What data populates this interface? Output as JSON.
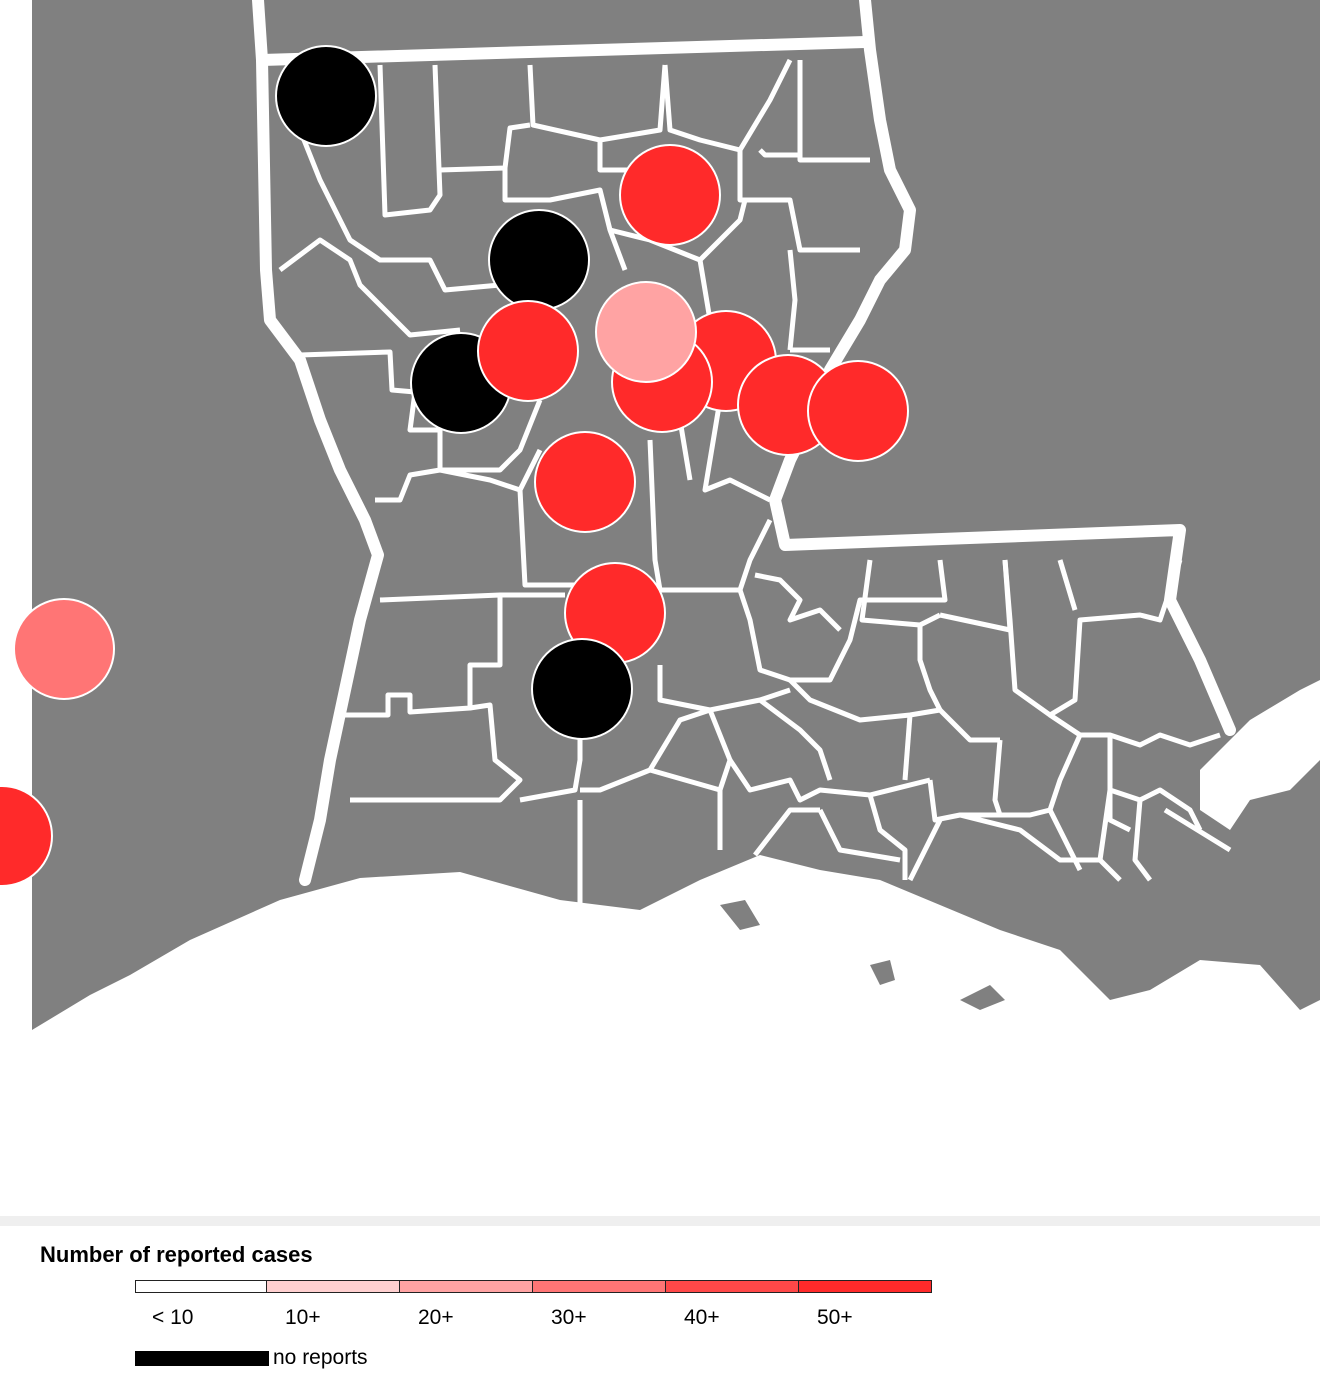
{
  "map": {
    "land_color": "#808080",
    "border_color": "#ffffff",
    "water_color": "#ffffff",
    "markers": [
      {
        "name": "marker-nw-corner",
        "status": "no-reports"
      },
      {
        "name": "marker-ne-north",
        "status": "50+"
      },
      {
        "name": "marker-center-north",
        "status": "no-reports"
      },
      {
        "name": "marker-center-a",
        "status": "50+"
      },
      {
        "name": "marker-center-b",
        "status": "20+"
      },
      {
        "name": "marker-center-c",
        "status": "50+"
      },
      {
        "name": "marker-center-d",
        "status": "50+"
      },
      {
        "name": "marker-east-a",
        "status": "50+"
      },
      {
        "name": "marker-east-b",
        "status": "50+"
      },
      {
        "name": "marker-west-center",
        "status": "no-reports"
      },
      {
        "name": "marker-south-center",
        "status": "50+"
      },
      {
        "name": "marker-south-a",
        "status": "50+"
      },
      {
        "name": "marker-south-b",
        "status": "no-reports"
      },
      {
        "name": "marker-texas-west",
        "status": "30+"
      },
      {
        "name": "marker-texas-southwest",
        "status": "50+"
      }
    ]
  },
  "legend": {
    "title": "Number of reported cases",
    "bins": [
      {
        "label": "< 10",
        "color": "#ffffff"
      },
      {
        "label": "10+",
        "color": "#ffd0d0"
      },
      {
        "label": "20+",
        "color": "#ffa3a3"
      },
      {
        "label": "30+",
        "color": "#ff7575"
      },
      {
        "label": "40+",
        "color": "#ff4848"
      },
      {
        "label": "50+",
        "color": "#ff2a2a"
      }
    ],
    "no_reports": {
      "label": "no reports",
      "color": "#000000"
    }
  }
}
